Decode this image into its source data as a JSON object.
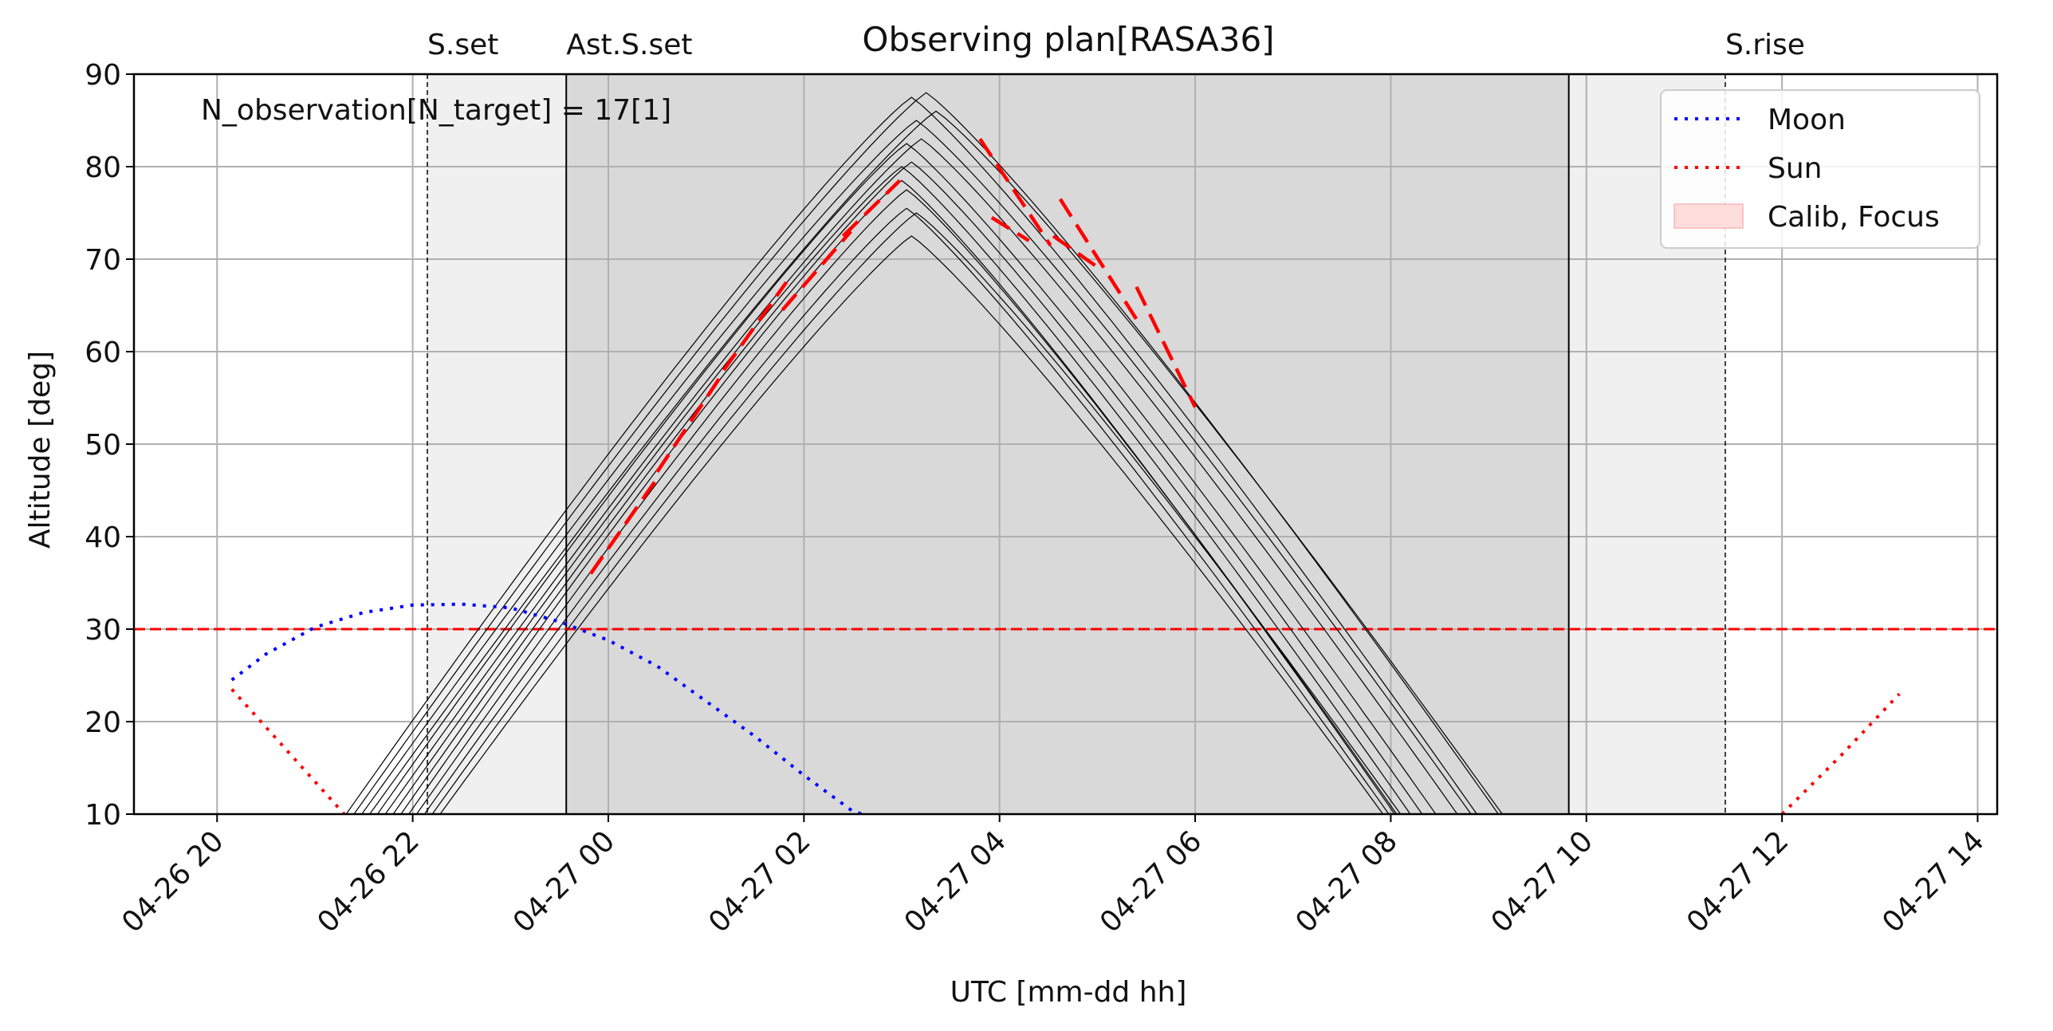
{
  "chart_data": {
    "type": "line",
    "title": "Observing plan[RASA36]",
    "xlabel": "UTC [mm-dd hh]",
    "ylabel": "Altitude [deg]",
    "x_unit": "hours since 2024-04-26 20:00 UTC",
    "xlim": [
      -0.85,
      18.2
    ],
    "ylim": [
      10,
      90
    ],
    "x_ticks": [
      {
        "x": 0,
        "label": "04-26 20"
      },
      {
        "x": 2,
        "label": "04-26 22"
      },
      {
        "x": 4,
        "label": "04-27 00"
      },
      {
        "x": 6,
        "label": "04-27 02"
      },
      {
        "x": 8,
        "label": "04-27 04"
      },
      {
        "x": 10,
        "label": "04-27 06"
      },
      {
        "x": 12,
        "label": "04-27 08"
      },
      {
        "x": 14,
        "label": "04-27 10"
      },
      {
        "x": 16,
        "label": "04-27 12"
      },
      {
        "x": 18,
        "label": "04-27 14"
      }
    ],
    "y_ticks": [
      10,
      20,
      30,
      40,
      50,
      60,
      70,
      80,
      90
    ],
    "grid": true,
    "annotation": "N_observation[N_target] = 17[1]",
    "shaded_regions": [
      {
        "x_start": 2.15,
        "x_end": 3.57,
        "color": "#f0f0f0"
      },
      {
        "x_start": 3.57,
        "x_end": 13.82,
        "color": "#d9d9d9"
      },
      {
        "x_start": 13.82,
        "x_end": 15.42,
        "color": "#f0f0f0"
      }
    ],
    "vertical_markers": [
      {
        "label": "S.set",
        "x": 2.15,
        "style": "dashed"
      },
      {
        "label": "Ast.S.set",
        "x": 3.57,
        "style": "solid"
      },
      {
        "label": "",
        "x": 13.82,
        "style": "solid"
      },
      {
        "label": "S.rise",
        "x": 15.42,
        "style": "dashed"
      }
    ],
    "threshold_line": {
      "y": 30,
      "color": "#ff0000",
      "style": "dashed"
    },
    "target_tracks": {
      "color": "#000000",
      "y_start": 10,
      "tracks": [
        {
          "x_start": 1.32,
          "x_peak": 7.1,
          "peak": 87.5
        },
        {
          "x_start": 1.4,
          "x_peak": 7.25,
          "peak": 88.0
        },
        {
          "x_start": 1.48,
          "x_peak": 7.15,
          "peak": 85.0
        },
        {
          "x_start": 1.56,
          "x_peak": 7.35,
          "peak": 86.0
        },
        {
          "x_start": 1.64,
          "x_peak": 7.05,
          "peak": 82.5
        },
        {
          "x_start": 1.72,
          "x_peak": 7.2,
          "peak": 83.0
        },
        {
          "x_start": 1.8,
          "x_peak": 7.0,
          "peak": 80.0
        },
        {
          "x_start": 1.88,
          "x_peak": 7.1,
          "peak": 80.5
        },
        {
          "x_start": 1.96,
          "x_peak": 7.0,
          "peak": 78.5
        },
        {
          "x_start": 2.04,
          "x_peak": 7.05,
          "peak": 77.5
        },
        {
          "x_start": 2.12,
          "x_peak": 7.05,
          "peak": 75.5
        },
        {
          "x_start": 2.2,
          "x_peak": 7.15,
          "peak": 75.0
        },
        {
          "x_start": 2.28,
          "x_peak": 7.1,
          "peak": 72.5
        }
      ]
    },
    "observation_segments": {
      "color": "#ff0000",
      "style": "dashed",
      "segments": [
        {
          "x": [
            3.82,
            4.48
          ],
          "y": [
            36.0,
            46.0
          ]
        },
        {
          "x": [
            4.5,
            5.16
          ],
          "y": [
            47.0,
            57.5
          ]
        },
        {
          "x": [
            5.18,
            5.82
          ],
          "y": [
            58.0,
            67.5
          ]
        },
        {
          "x": [
            5.78,
            6.48
          ],
          "y": [
            64.5,
            73.0
          ]
        },
        {
          "x": [
            6.4,
            6.98
          ],
          "y": [
            72.5,
            78.5
          ]
        },
        {
          "x": [
            7.8,
            8.52
          ],
          "y": [
            83.0,
            71.5
          ]
        },
        {
          "x": [
            8.62,
            9.4
          ],
          "y": [
            76.5,
            63.5
          ]
        },
        {
          "x": [
            9.4,
            10.0
          ],
          "y": [
            67.0,
            54.0
          ]
        },
        {
          "x": [
            7.92,
            8.3
          ],
          "y": [
            74.5,
            72.0
          ]
        },
        {
          "x": [
            8.55,
            9.02
          ],
          "y": [
            72.5,
            69.0
          ]
        }
      ]
    },
    "series": [
      {
        "name": "Moon",
        "color": "#0000ff",
        "style": "dotted",
        "x": [
          0.15,
          0.5,
          1.0,
          1.5,
          2.0,
          2.5,
          3.0,
          3.5,
          4.0,
          4.5,
          5.0,
          5.5,
          6.0,
          6.5,
          6.6
        ],
        "y": [
          24.5,
          27.3,
          30.2,
          31.8,
          32.6,
          32.7,
          32.3,
          30.8,
          28.8,
          26.0,
          22.2,
          18.4,
          14.2,
          10.3,
          10.0
        ]
      },
      {
        "name": "Sun",
        "color": "#ff0000",
        "style": "dotted",
        "x": [
          0.15,
          0.5,
          0.9,
          1.3
        ],
        "y": [
          23.5,
          19.4,
          14.7,
          10.0
        ]
      },
      {
        "name": "Sun",
        "color": "#ff0000",
        "style": "dotted",
        "x": [
          16.0,
          16.6,
          17.2
        ],
        "y": [
          10.0,
          16.3,
          23.0
        ]
      }
    ],
    "legend": {
      "position": "top-right",
      "entries": [
        {
          "label": "Moon",
          "color": "#0000ff",
          "kind": "dotted-line"
        },
        {
          "label": "Sun",
          "color": "#ff0000",
          "kind": "dotted-line"
        },
        {
          "label": "Calib, Focus",
          "color": "#ffdddd",
          "kind": "patch"
        }
      ]
    }
  }
}
